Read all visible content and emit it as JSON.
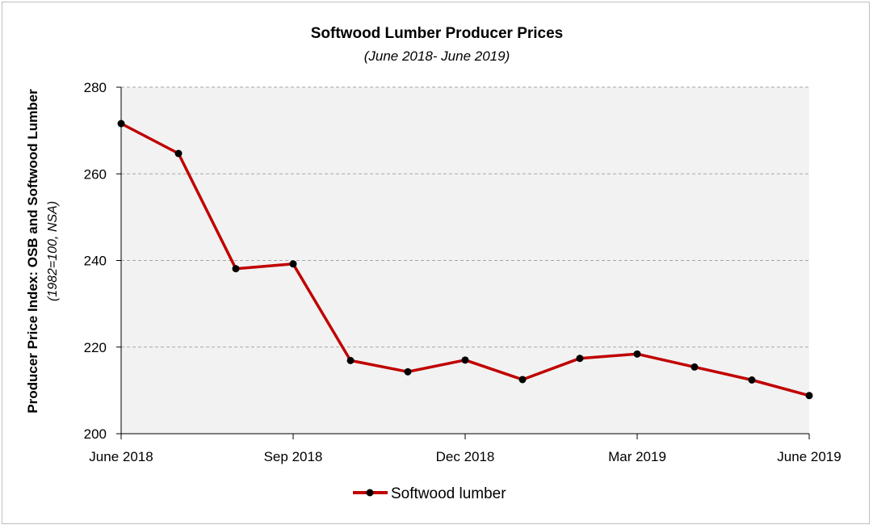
{
  "chart_data": {
    "type": "line",
    "title": "Softwood Lumber Producer Prices",
    "subtitle": "(June 2018- June 2019)",
    "ylabel": "Producer Price Index: OSB and Softwood Lumber",
    "ylabel_sub": "(1982=100,  NSA)",
    "xlabel": "",
    "ylim": [
      200,
      280
    ],
    "y_ticks": [
      "200",
      "220",
      "240",
      "260",
      "280"
    ],
    "x_tick_labels": [
      "June 2018",
      "Sep 2018",
      "Dec 2018",
      "Mar 2019",
      "June 2019"
    ],
    "x": [
      "Jun 2018",
      "Jul 2018",
      "Aug 2018",
      "Sep 2018",
      "Oct 2018",
      "Nov 2018",
      "Dec 2018",
      "Jan 2019",
      "Feb 2019",
      "Mar 2019",
      "Apr 2019",
      "May 2019",
      "Jun 2019"
    ],
    "grid": true,
    "legend_position": "bottom",
    "series": [
      {
        "name": "Softwood lumber",
        "color": "#c00000",
        "marker_color": "#000000",
        "values": [
          271.6,
          264.7,
          238.1,
          239.2,
          216.9,
          214.3,
          217.0,
          212.5,
          217.4,
          218.4,
          215.4,
          212.4,
          208.8
        ]
      }
    ]
  }
}
